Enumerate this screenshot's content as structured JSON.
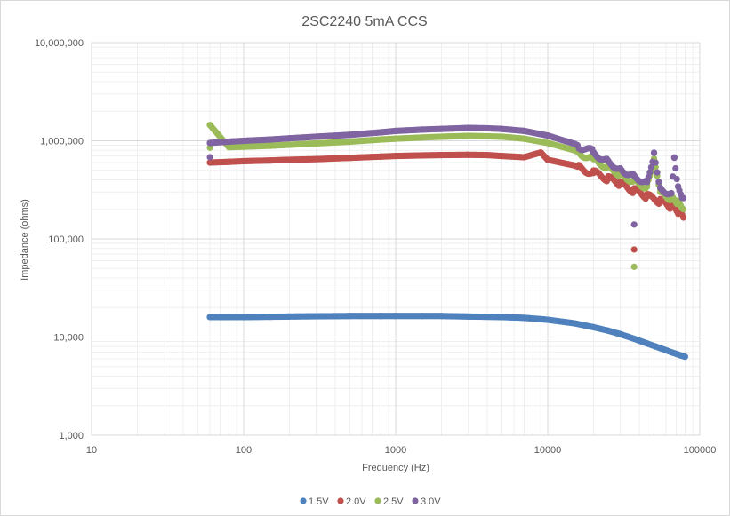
{
  "chart_data": {
    "type": "scatter",
    "title": "2SC2240 5mA CCS",
    "xlabel": "Frequency (Hz)",
    "ylabel": "Impedance (ohms)",
    "x_scale": "log",
    "y_scale": "log",
    "xlim": [
      10,
      100000
    ],
    "ylim": [
      1000,
      10000000
    ],
    "x_ticks": [
      {
        "value": 10,
        "label": "10"
      },
      {
        "value": 100,
        "label": "100"
      },
      {
        "value": 1000,
        "label": "1000"
      },
      {
        "value": 10000,
        "label": "10000"
      },
      {
        "value": 100000,
        "label": "100000"
      }
    ],
    "y_ticks": [
      {
        "value": 1000,
        "label": "1,000"
      },
      {
        "value": 10000,
        "label": "10,000"
      },
      {
        "value": 100000,
        "label": "100,000"
      },
      {
        "value": 1000000,
        "label": "1,000,000"
      },
      {
        "value": 10000000,
        "label": "10,000,000"
      }
    ],
    "grid": true,
    "legend_position": "bottom",
    "series": [
      {
        "name": "1.5V",
        "color": "#4f81bd",
        "points": [
          [
            60,
            16000
          ],
          [
            80,
            16000
          ],
          [
            100,
            16000
          ],
          [
            150,
            16100
          ],
          [
            200,
            16200
          ],
          [
            300,
            16300
          ],
          [
            500,
            16400
          ],
          [
            800,
            16400
          ],
          [
            1000,
            16400
          ],
          [
            1500,
            16400
          ],
          [
            2000,
            16400
          ],
          [
            3000,
            16200
          ],
          [
            5000,
            16000
          ],
          [
            7000,
            15700
          ],
          [
            10000,
            15000
          ],
          [
            15000,
            13800
          ],
          [
            20000,
            12600
          ],
          [
            25000,
            11600
          ],
          [
            30000,
            10700
          ],
          [
            37000,
            9600
          ],
          [
            45000,
            8600
          ],
          [
            55000,
            7700
          ],
          [
            65000,
            7000
          ],
          [
            75000,
            6500
          ],
          [
            80000,
            6300
          ]
        ]
      },
      {
        "name": "2.0V",
        "color": "#c0504d",
        "points": [
          [
            60,
            600000
          ],
          [
            80,
            610000
          ],
          [
            100,
            620000
          ],
          [
            150,
            630000
          ],
          [
            200,
            640000
          ],
          [
            300,
            650000
          ],
          [
            500,
            670000
          ],
          [
            800,
            690000
          ],
          [
            1000,
            700000
          ],
          [
            1500,
            710000
          ],
          [
            2000,
            715000
          ],
          [
            3000,
            720000
          ],
          [
            4000,
            715000
          ],
          [
            5000,
            700000
          ],
          [
            7000,
            680000
          ],
          [
            9000,
            760000
          ],
          [
            10000,
            640000
          ],
          [
            15000,
            560000
          ],
          [
            20000,
            470000
          ],
          [
            25000,
            410000
          ],
          [
            30000,
            360000
          ],
          [
            37000,
            310000
          ],
          [
            37000,
            78000
          ],
          [
            45000,
            270000
          ],
          [
            55000,
            240000
          ],
          [
            65000,
            210000
          ],
          [
            72000,
            180000
          ],
          [
            78000,
            165000
          ]
        ]
      },
      {
        "name": "2.5V",
        "color": "#9bbb59",
        "points": [
          [
            60,
            1450000
          ],
          [
            60,
            850000
          ],
          [
            80,
            860000
          ],
          [
            100,
            870000
          ],
          [
            150,
            890000
          ],
          [
            200,
            910000
          ],
          [
            300,
            940000
          ],
          [
            500,
            980000
          ],
          [
            800,
            1030000
          ],
          [
            1000,
            1050000
          ],
          [
            1500,
            1080000
          ],
          [
            2000,
            1100000
          ],
          [
            3000,
            1120000
          ],
          [
            4000,
            1110000
          ],
          [
            5000,
            1100000
          ],
          [
            7000,
            1050000
          ],
          [
            10000,
            950000
          ],
          [
            15000,
            800000
          ],
          [
            20000,
            650000
          ],
          [
            25000,
            540000
          ],
          [
            30000,
            460000
          ],
          [
            37000,
            390000
          ],
          [
            37000,
            52000
          ],
          [
            45000,
            340000
          ],
          [
            50000,
            620000
          ],
          [
            55000,
            300000
          ],
          [
            65000,
            260000
          ],
          [
            72000,
            230000
          ],
          [
            78000,
            200000
          ]
        ]
      },
      {
        "name": "3.0V",
        "color": "#8064a2",
        "points": [
          [
            60,
            950000
          ],
          [
            60,
            680000
          ],
          [
            80,
            980000
          ],
          [
            100,
            1000000
          ],
          [
            150,
            1030000
          ],
          [
            200,
            1060000
          ],
          [
            300,
            1100000
          ],
          [
            500,
            1150000
          ],
          [
            800,
            1220000
          ],
          [
            1000,
            1260000
          ],
          [
            1500,
            1300000
          ],
          [
            2000,
            1320000
          ],
          [
            3000,
            1350000
          ],
          [
            4000,
            1340000
          ],
          [
            5000,
            1320000
          ],
          [
            7000,
            1260000
          ],
          [
            10000,
            1130000
          ],
          [
            15000,
            930000
          ],
          [
            20000,
            760000
          ],
          [
            25000,
            620000
          ],
          [
            30000,
            520000
          ],
          [
            37000,
            440000
          ],
          [
            37000,
            140000
          ],
          [
            45000,
            380000
          ],
          [
            50000,
            750000
          ],
          [
            55000,
            330000
          ],
          [
            65000,
            290000
          ],
          [
            68000,
            670000
          ],
          [
            72000,
            340000
          ],
          [
            78000,
            260000
          ]
        ]
      }
    ]
  }
}
